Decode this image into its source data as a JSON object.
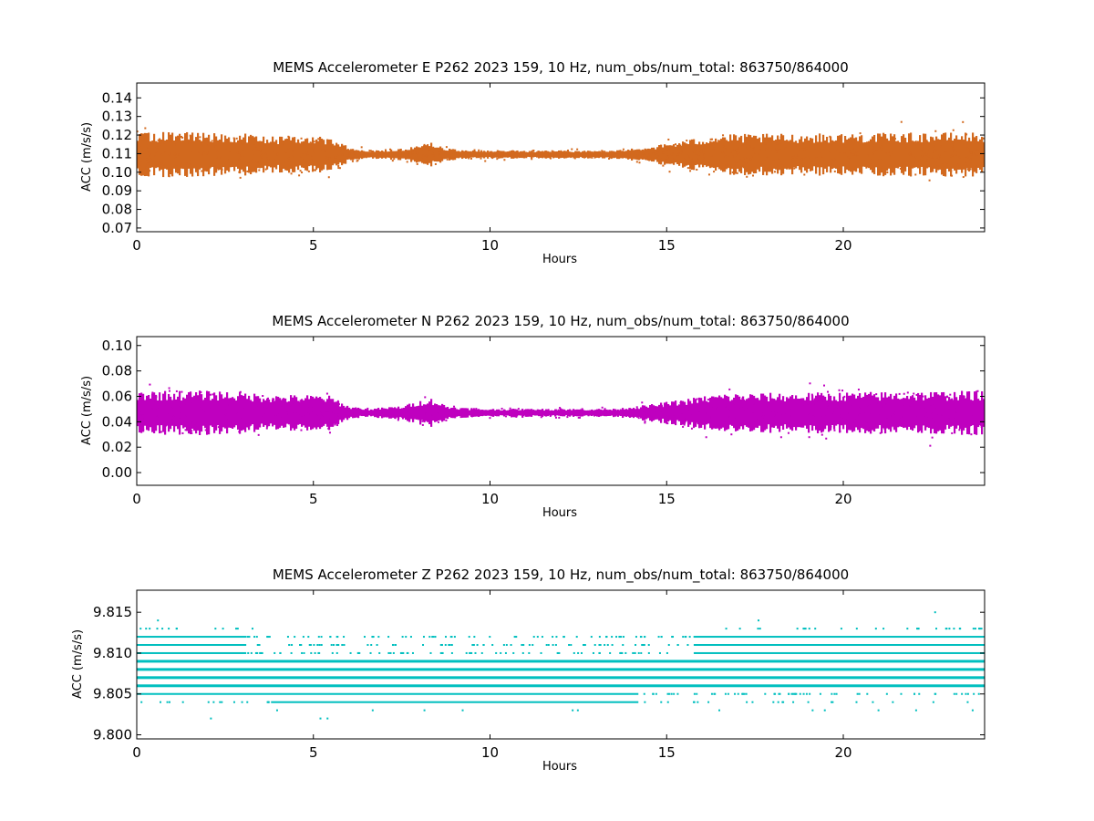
{
  "chart_data": [
    {
      "type": "scatter",
      "title": "MEMS Accelerometer E P262 2023 159, 10 Hz, num_obs/num_total: 863750/864000",
      "xlabel": "Hours",
      "ylabel": "ACC (m/s/s)",
      "xlim": [
        0,
        24
      ],
      "ylim": [
        0.068,
        0.148
      ],
      "xticks": [
        0,
        5,
        10,
        15,
        20
      ],
      "xtick_labels": [
        "0",
        "5",
        "10",
        "15",
        "20"
      ],
      "yticks": [
        0.07,
        0.08,
        0.09,
        0.1,
        0.11,
        0.12,
        0.13,
        0.14
      ],
      "ytick_labels": [
        "0.07",
        "0.08",
        "0.09",
        "0.10",
        "0.11",
        "0.12",
        "0.13",
        "0.14"
      ],
      "color": "#d2691e",
      "grid": false,
      "center": 0.1095,
      "envelope": [
        [
          0,
          0.011
        ],
        [
          2.5,
          0.011
        ],
        [
          4,
          0.009
        ],
        [
          5.4,
          0.009
        ],
        [
          6,
          0.004
        ],
        [
          6.5,
          0.002
        ],
        [
          7.5,
          0.003
        ],
        [
          8.3,
          0.006
        ],
        [
          8.8,
          0.003
        ],
        [
          9.6,
          0.002
        ],
        [
          13.5,
          0.002
        ],
        [
          14.5,
          0.004
        ],
        [
          15.5,
          0.007
        ],
        [
          16.5,
          0.01
        ],
        [
          24,
          0.011
        ]
      ],
      "outlier_min": 0.081,
      "outlier_max": 0.136
    },
    {
      "type": "scatter",
      "title": "MEMS Accelerometer N P262 2023 159, 10 Hz, num_obs/num_total: 863750/864000",
      "xlabel": "Hours",
      "ylabel": "ACC (m/s/s)",
      "xlim": [
        0,
        24
      ],
      "ylim": [
        -0.01,
        0.107
      ],
      "xticks": [
        0,
        5,
        10,
        15,
        20
      ],
      "xtick_labels": [
        "0",
        "5",
        "10",
        "15",
        "20"
      ],
      "yticks": [
        0.0,
        0.02,
        0.04,
        0.06,
        0.08,
        0.1
      ],
      "ytick_labels": [
        "0.00",
        "0.02",
        "0.04",
        "0.06",
        "0.08",
        "0.10"
      ],
      "color": "#bf00bf",
      "grid": false,
      "center": 0.047,
      "envelope": [
        [
          0,
          0.016
        ],
        [
          2.5,
          0.016
        ],
        [
          4,
          0.013
        ],
        [
          5.4,
          0.013
        ],
        [
          6,
          0.005
        ],
        [
          6.5,
          0.003
        ],
        [
          7.5,
          0.005
        ],
        [
          8.3,
          0.011
        ],
        [
          8.8,
          0.005
        ],
        [
          9.6,
          0.003
        ],
        [
          13.5,
          0.003
        ],
        [
          14.5,
          0.006
        ],
        [
          15.5,
          0.01
        ],
        [
          16.5,
          0.014
        ],
        [
          24,
          0.016
        ]
      ],
      "outlier_min": 0.007,
      "outlier_max": 0.09
    },
    {
      "type": "scatter",
      "title": "MEMS Accelerometer Z P262 2023 159, 10 Hz, num_obs/num_total: 863750/864000",
      "xlabel": "Hours",
      "ylabel": "ACC (m/s/s)",
      "xlim": [
        0,
        24
      ],
      "ylim": [
        9.7995,
        9.8177
      ],
      "xticks": [
        0,
        5,
        10,
        15,
        20
      ],
      "xtick_labels": [
        "0",
        "5",
        "10",
        "15",
        "20"
      ],
      "yticks": [
        9.8,
        9.805,
        9.81,
        9.815
      ],
      "ytick_labels": [
        "9.800",
        "9.805",
        "9.810",
        "9.815"
      ],
      "color": "#00bfbf",
      "grid": false,
      "quantized_levels": [
        {
          "y": 9.813,
          "density": "sparse"
        },
        {
          "y": 9.812,
          "density": "medium"
        },
        {
          "y": 9.811,
          "density": "medium"
        },
        {
          "y": 9.81,
          "density": "medium"
        },
        {
          "y": 9.809,
          "density": "solid"
        },
        {
          "y": 9.808,
          "density": "solid"
        },
        {
          "y": 9.807,
          "density": "solid"
        },
        {
          "y": 9.806,
          "density": "solid"
        },
        {
          "y": 9.805,
          "density": "medium"
        },
        {
          "y": 9.804,
          "density": "sparse"
        },
        {
          "y": 9.803,
          "density": "rare"
        }
      ],
      "outlier_min": 9.802,
      "outlier_max": 9.815
    }
  ]
}
